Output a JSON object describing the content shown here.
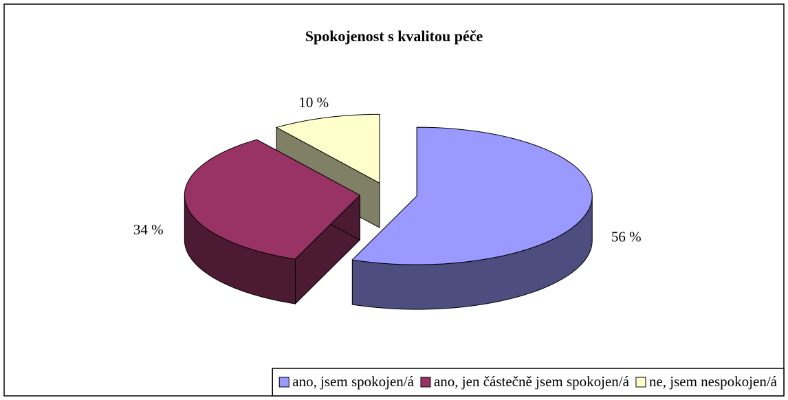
{
  "chart_data": {
    "type": "pie",
    "title": "Spokojenost s kvalitou péče",
    "categories": [
      "ano, jsem spokojen/á",
      "ano, jen částečně jsem spokojen/á",
      "ne, jsem nespokojen/á"
    ],
    "values": [
      56,
      34,
      10
    ],
    "value_labels": [
      "56 %",
      "34 %",
      "10 %"
    ],
    "colors": [
      "#9999ff",
      "#993366",
      "#ffffcc"
    ],
    "legend": "bottom"
  }
}
